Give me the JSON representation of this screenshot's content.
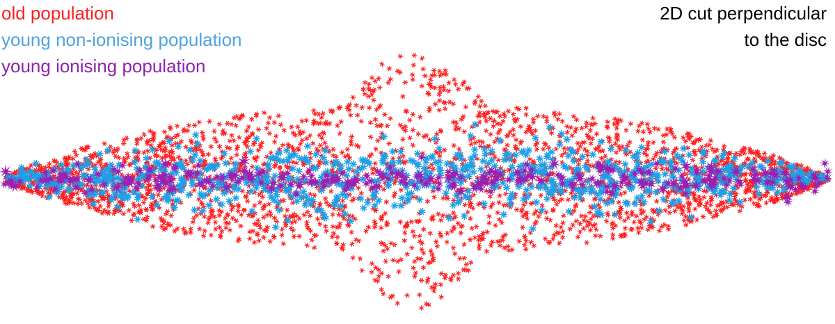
{
  "legend": {
    "items": [
      {
        "label": "old population",
        "color": "#ff1f1f"
      },
      {
        "label": "young non-ionising population",
        "color": "#4fa3e0"
      },
      {
        "label": "young ionising population",
        "color": "#8e24aa"
      }
    ]
  },
  "caption": {
    "line1": "2D cut perpendicular",
    "line2": "to the disc"
  },
  "populations": {
    "old": {
      "color": "#ff1f1f",
      "glyph": "asterisk-small"
    },
    "young_non_ionising": {
      "color": "#1ea0e8",
      "glyph": "asterisk-medium"
    },
    "young_ionising": {
      "color": "#9c1fb0",
      "glyph": "star-large"
    }
  }
}
